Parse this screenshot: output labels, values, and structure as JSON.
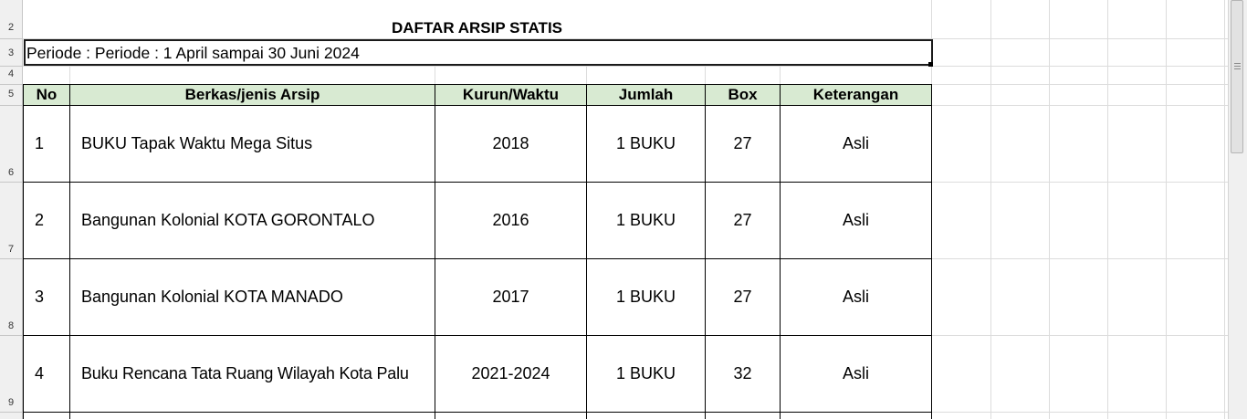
{
  "sheet": {
    "title": "DAFTAR ARSIP STATIS",
    "period": "Periode : Periode : 1 April sampai 30  Juni  2024",
    "row_numbers": [
      "2",
      "3",
      "4",
      "5",
      "6",
      "7",
      "8",
      "9"
    ],
    "headers": [
      "No",
      "Berkas/jenis Arsip",
      "Kurun/Waktu",
      "Jumlah",
      "Box",
      "Keterangan"
    ],
    "header_fill": "#d8ead2",
    "rows": [
      {
        "no": "1",
        "name": "BUKU Tapak Waktu Mega Situs",
        "period": "2018",
        "qty": "1 BUKU",
        "box": "27",
        "note": "Asli"
      },
      {
        "no": "2",
        "name": "Bangunan Kolonial KOTA GORONTALO",
        "period": "2016",
        "qty": "1 BUKU",
        "box": "27",
        "note": "Asli"
      },
      {
        "no": "3",
        "name": "Bangunan Kolonial KOTA MANADO",
        "period": "2017",
        "qty": "1 BUKU",
        "box": "27",
        "note": "Asli"
      },
      {
        "no": "4",
        "name": "Buku Rencana Tata Ruang Wilayah Kota Palu",
        "period": "2021-2024",
        "qty": "1 BUKU",
        "box": "32",
        "note": "Asli"
      }
    ]
  }
}
